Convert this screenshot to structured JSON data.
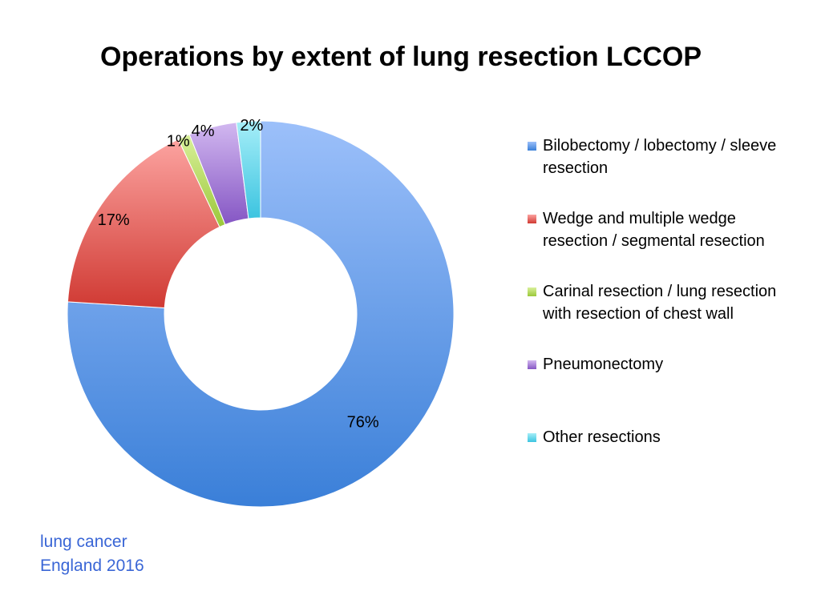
{
  "page": {
    "title": "Operations by extent of lung resection LCCOP",
    "footer_line1": "lung cancer",
    "footer_line2": "England 2016"
  },
  "chart_data": {
    "type": "pie",
    "donut": true,
    "title": "Operations by extent of lung resection LCCOP",
    "slices": [
      {
        "label": "Bilobectomy / lobectomy / sleeve resection",
        "value": 76,
        "value_label": "76%",
        "color_light": "#9cc0fa",
        "color_dark": "#3a7fd8"
      },
      {
        "label": "Wedge and multiple wedge resection / segmental resection",
        "value": 17,
        "value_label": "17%",
        "color_light": "#fca3a0",
        "color_dark": "#d03a33"
      },
      {
        "label": "Carinal resection / lung resection with resection of chest wall",
        "value": 1,
        "value_label": "1%",
        "color_light": "#d9f09a",
        "color_dark": "#9bc83a"
      },
      {
        "label": "Pneumonectomy",
        "value": 4,
        "value_label": "4%",
        "color_light": "#d2b8f0",
        "color_dark": "#8556c4"
      },
      {
        "label": "Other resections",
        "value": 2,
        "value_label": "2%",
        "color_light": "#a6eef8",
        "color_dark": "#3cc4e0"
      }
    ],
    "legend_position": "right"
  }
}
